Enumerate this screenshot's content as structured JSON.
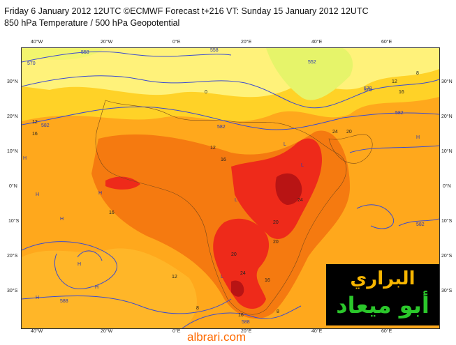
{
  "header": {
    "line1": "Friday 6 January 2012 12UTC ©ECMWF Forecast t+216 VT: Sunday 15 January 2012 12UTC",
    "line2": "850 hPa Temperature / 500 hPa Geopotential"
  },
  "map": {
    "top_lon_labels": [
      "40°W",
      "20°W",
      "0°E",
      "20°E",
      "40°E",
      "60°E"
    ],
    "bottom_lon_labels": [
      "40°W",
      "20°W",
      "0°E",
      "20°E",
      "40°E",
      "60°E"
    ],
    "left_lat_labels": [
      "30°N",
      "20°N",
      "10°N",
      "0°N",
      "10°S",
      "20°S",
      "30°S"
    ],
    "right_lat_labels": [
      "30°N",
      "20°N",
      "10°N",
      "0°N",
      "10°S",
      "20°S",
      "30°S"
    ],
    "temperature_labels": [
      "0",
      "8",
      "12",
      "12",
      "16",
      "16",
      "16",
      "16",
      "20",
      "20",
      "20",
      "20",
      "24",
      "24",
      "24",
      "16",
      "16",
      "12",
      "8",
      "8",
      "12"
    ],
    "geopotential_labels": [
      "570",
      "558",
      "552",
      "558",
      "570",
      "576",
      "582",
      "582",
      "582",
      "582",
      "588",
      "588"
    ],
    "pressure_markers": [
      "H",
      "H",
      "H",
      "H",
      "H",
      "H",
      "H",
      "H",
      "L",
      "L",
      "L",
      "L"
    ],
    "colors": {
      "cold": "#e6f46a",
      "cool": "#fff27a",
      "mild": "#ffd227",
      "warm": "#ffa81c",
      "hot": "#f57a10",
      "very_hot": "#ee2a1a",
      "extreme": "#b81414",
      "contour": "#3b4bd0"
    }
  },
  "watermark": {
    "line1": "البراري",
    "line2": "أبو ميعاد"
  },
  "footer": {
    "site": "albrari.com"
  }
}
